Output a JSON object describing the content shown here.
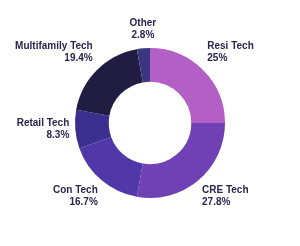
{
  "chart_data": {
    "type": "doughnut",
    "categories": [
      "Resi Tech",
      "CRE Tech",
      "Con Tech",
      "Retail Tech",
      "Multifamily Tech",
      "Other"
    ],
    "values": [
      25,
      27.8,
      16.7,
      8.3,
      19.4,
      2.8
    ],
    "value_labels": [
      "25%",
      "27.8%",
      "16.7%",
      "8.3%",
      "19.4%",
      "2.8%"
    ],
    "colors": [
      "#b35fc5",
      "#7040b5",
      "#5138a8",
      "#3d2f8f",
      "#201c42",
      "#3b3681"
    ],
    "data_labels": true
  }
}
